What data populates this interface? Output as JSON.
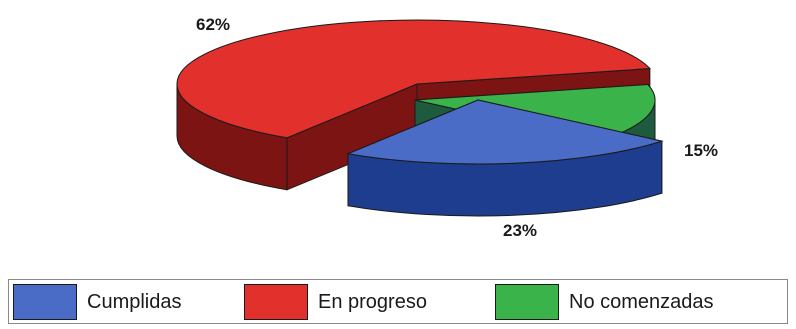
{
  "chart_data": {
    "type": "pie",
    "style": "3d-exploded",
    "categories": [
      "Cumplidas",
      "En progreso",
      "No comenzadas"
    ],
    "values": [
      23,
      62,
      15
    ],
    "value_labels": [
      "23%",
      "62%",
      "15%"
    ],
    "colors": {
      "Cumplidas": "#4a6cc6",
      "En progreso": "#e2302c",
      "No comenzadas": "#3ab34a"
    },
    "side_colors": {
      "Cumplidas": "#1f3d8f",
      "En progreso": "#7c1414",
      "No comenzadas": "#1e5b3e"
    },
    "legend": {
      "placement": "bottom",
      "items": [
        {
          "label": "Cumplidas",
          "color": "#4a6cc6"
        },
        {
          "label": "En progreso",
          "color": "#e2302c"
        },
        {
          "label": "No comenzadas",
          "color": "#3ab34a"
        }
      ]
    }
  }
}
